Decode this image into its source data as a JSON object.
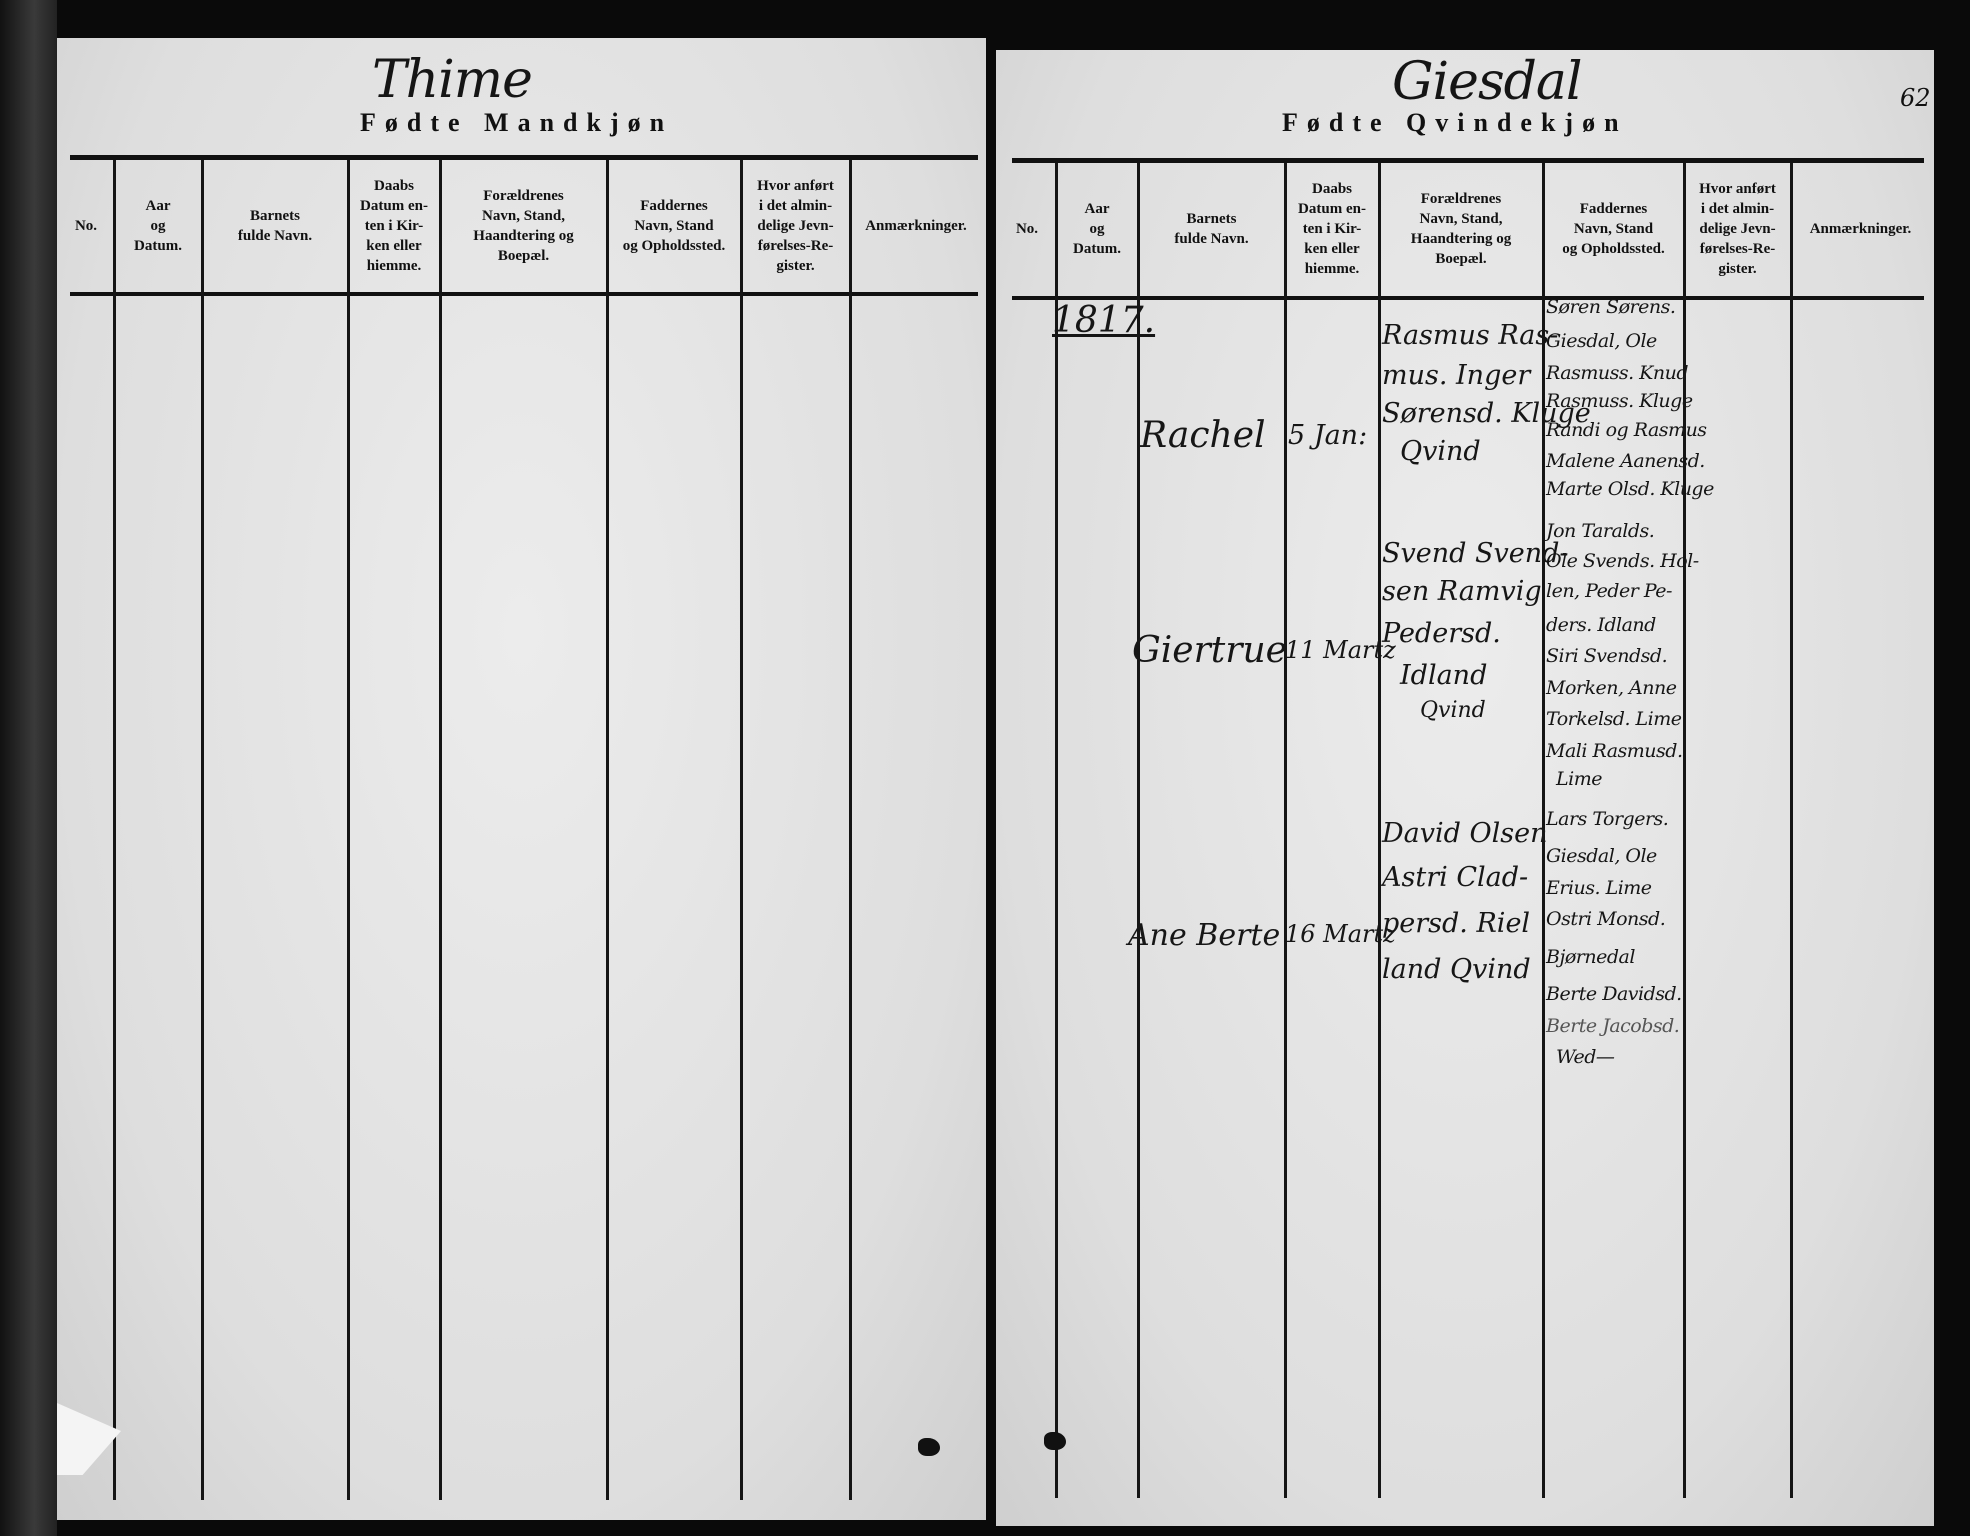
{
  "left_page": {
    "parish": "Thime",
    "heading": "Fødte Mandkjøn",
    "columns": [
      "No.",
      "Aar\nog\nDatum.",
      "Barnets\nfulde Navn.",
      "Daabs\nDatum en-\nten i Kir-\nken eller\nhiemme.",
      "Forældrenes\nNavn, Stand,\nHaandtering og\nBoepæl.",
      "Faddernes\nNavn, Stand\nog Opholdssted.",
      "Hvor anført\ni det almin-\ndelige Jevn-\nførelses-Re-\ngister.",
      "Anmærkninger."
    ]
  },
  "right_page": {
    "parish": "Giesdal",
    "heading": "Fødte Qvindekjøn",
    "page_number": "62",
    "columns": [
      "No.",
      "Aar\nog\nDatum.",
      "Barnets\nfulde Navn.",
      "Daabs\nDatum en-\nten i Kir-\nken eller\nhiemme.",
      "Forældrenes\nNavn, Stand,\nHaandtering og\nBoepæl.",
      "Faddernes\nNavn, Stand\nog Opholdssted.",
      "Hvor anført\ni det almin-\ndelige Jevn-\nførelses-Re-\ngister.",
      "Anmærkninger."
    ],
    "year": "1817.",
    "entries": [
      {
        "child": "Rachel",
        "date": "5 Jan:",
        "parents": [
          "Rasmus Ras-",
          "mus. Inger",
          "Sørensd. Kluge",
          "Qvind"
        ],
        "sponsors": [
          "Søren Sørens.",
          "Giesdal, Ole",
          "Rasmuss. Knud",
          "Rasmuss. Kluge",
          "Randi og Rasmus",
          "Malene Aanensd.",
          "Marte Olsd. Kluge"
        ]
      },
      {
        "child": "Giertrue",
        "date": "11 Martz",
        "parents": [
          "Svend Svend-",
          "sen Ramvig",
          "Pedersd.",
          "Idland",
          "Qvind"
        ],
        "sponsors": [
          "Jon Taralds.",
          "Ole Svends. Hol-",
          "len, Peder Pe-",
          "ders. Idland",
          "Siri Svendsd.",
          "Morken, Anne",
          "Torkelsd. Lime",
          "Mali Rasmusd.",
          "Lime"
        ]
      },
      {
        "child": "Ane Berte",
        "date": "16 Martz",
        "parents": [
          "David Olsen",
          "Astri Clad-",
          "persd. Riel",
          "land Qvind"
        ],
        "sponsors": [
          "Lars Torgers.",
          "Giesdal, Ole",
          "Erius. Lime",
          "Ostri Monsd.",
          "Bjørnedal",
          "Berte Davidsd.",
          "Berte Jacobsd.",
          "Wed—"
        ]
      }
    ]
  }
}
